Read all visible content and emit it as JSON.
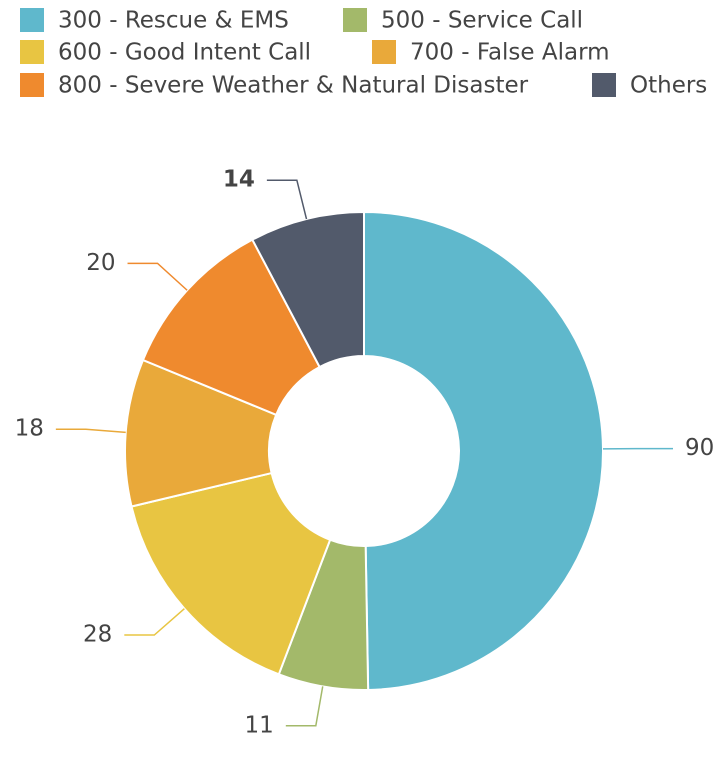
{
  "chart_data": {
    "type": "donut",
    "categories": [
      "300 - Rescue & EMS",
      "500 - Service Call",
      "600 - Good Intent Call",
      "700 - False Alarm",
      "800 - Severe Weather & Natural Disaster",
      "Others"
    ],
    "values": [
      90,
      11,
      28,
      18,
      20,
      14
    ],
    "colors": [
      "#5fb8cc",
      "#a3b96a",
      "#e8c542",
      "#e9a93a",
      "#ef8a2e",
      "#525a6b"
    ],
    "legend": "top"
  }
}
